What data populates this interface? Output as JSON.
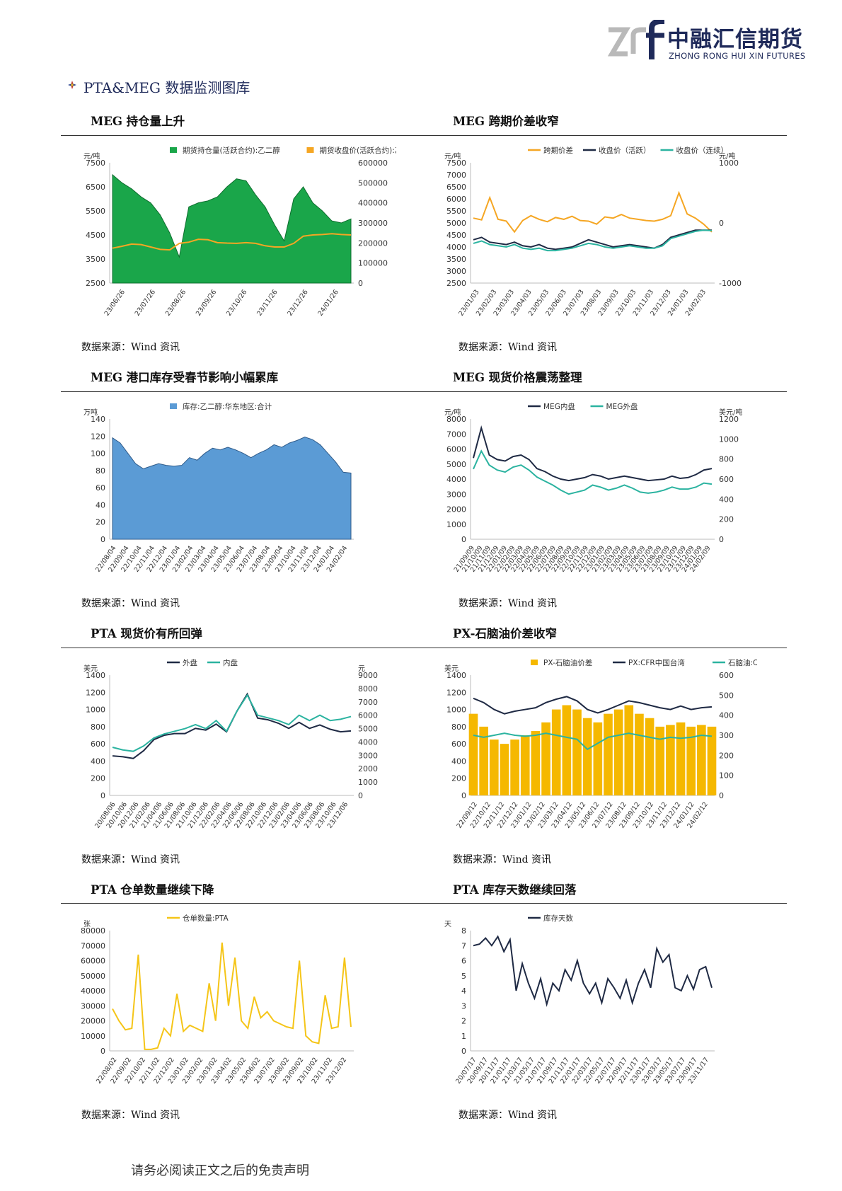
{
  "header": {
    "logo_cn": "中融汇信期货",
    "logo_en": "ZHONG RONG HUI XIN FUTURES",
    "section_title": "PTA&MEG 数据监测图库",
    "colors": {
      "brand": "#1f2a5a",
      "logo_grey": "#b9b9b9",
      "bullet_red": "#c0312b",
      "bullet_blue": "#1f3a8a",
      "bullet_yellow": "#e5b12a"
    }
  },
  "footer": {
    "disclaimer": "请务必阅读正文之后的免责声明"
  },
  "charts": [
    {
      "title": "MEG 持仓量上升",
      "source": "数据来源：Wind 资讯",
      "chart_data": {
        "type": "area",
        "legend": [
          "期货持仓量(活跃合约):乙二醇",
          "期货收盘价(活跃合约):乙二醇"
        ],
        "y_left_unit": "元/吨",
        "y_left_ticks": [
          "2500",
          "3500",
          "4500",
          "5500",
          "6500",
          "7500"
        ],
        "y_left_range": [
          2500,
          7500
        ],
        "y_right_ticks": [
          "0",
          "100000",
          "200000",
          "300000",
          "400000",
          "500000",
          "600000"
        ],
        "y_right_range": [
          0,
          600000
        ],
        "x_ticks": [
          "23/06/26",
          "23/07/26",
          "23/08/26",
          "23/09/26",
          "23/10/26",
          "23/11/26",
          "23/12/26",
          "24/01/26"
        ],
        "series": [
          {
            "name": "期货持仓量(活跃合约):乙二醇",
            "axis": "right",
            "color": "#1aa64a",
            "values": [
              540000,
              500000,
              470000,
              430000,
              400000,
              340000,
              250000,
              130000,
              380000,
              400000,
              410000,
              430000,
              480000,
              520000,
              510000,
              440000,
              380000,
              290000,
              210000,
              420000,
              480000,
              400000,
              360000,
              310000,
              300000,
              320000
            ]
          },
          {
            "name": "期货收盘价(活跃合约):乙二醇",
            "axis": "left",
            "color": "#f5a623",
            "values": [
              3950,
              4030,
              4120,
              4100,
              4000,
              3900,
              3880,
              4150,
              4200,
              4320,
              4300,
              4180,
              4160,
              4150,
              4180,
              4150,
              4050,
              4000,
              4000,
              4150,
              4450,
              4500,
              4520,
              4550,
              4520,
              4500
            ]
          }
        ]
      }
    },
    {
      "title": "MEG 跨期价差收窄",
      "source": "数据来源：Wind 资讯",
      "chart_data": {
        "type": "line",
        "legend": [
          "跨期价差",
          "收盘价（活跃）",
          "收盘价（连续）"
        ],
        "y_left_unit": "元/吨",
        "y_left_ticks": [
          "2500",
          "3000",
          "3500",
          "4000",
          "4500",
          "5000",
          "5500",
          "6000",
          "6500",
          "7000",
          "7500"
        ],
        "y_left_range": [
          2500,
          7500
        ],
        "y_right_unit": "元/吨",
        "y_right_ticks": [
          "-1000",
          "0",
          "1000"
        ],
        "y_right_range": [
          -1000,
          1000
        ],
        "x_ticks": [
          "23/01/03",
          "23/02/03",
          "23/03/03",
          "23/04/03",
          "23/05/03",
          "23/06/03",
          "23/07/03",
          "23/08/03",
          "23/09/03",
          "23/10/03",
          "23/11/03",
          "23/12/03",
          "24/01/03",
          "24/02/03"
        ],
        "series": [
          {
            "name": "跨期价差",
            "axis": "right",
            "color": "#f5a623",
            "values": [
              80,
              50,
              420,
              60,
              30,
              -150,
              40,
              120,
              60,
              20,
              90,
              60,
              110,
              40,
              30,
              -20,
              100,
              80,
              140,
              80,
              60,
              40,
              30,
              60,
              120,
              500,
              150,
              80,
              -20,
              -150
            ]
          },
          {
            "name": "收盘价（活跃）",
            "axis": "left",
            "color": "#1f2a44",
            "values": [
              4300,
              4400,
              4200,
              4150,
              4100,
              4200,
              4050,
              4000,
              4100,
              3950,
              3900,
              3950,
              4000,
              4150,
              4300,
              4200,
              4100,
              4000,
              4050,
              4100,
              4050,
              4000,
              3950,
              4100,
              4400,
              4500,
              4600,
              4700,
              4700,
              4700
            ]
          },
          {
            "name": "收盘价（连续）",
            "axis": "left",
            "color": "#2bb3a0",
            "values": [
              4150,
              4250,
              4100,
              4050,
              4000,
              4100,
              3950,
              3900,
              3950,
              3850,
              3850,
              3900,
              3950,
              4050,
              4150,
              4100,
              4000,
              3950,
              4000,
              4050,
              4000,
              3950,
              3950,
              4050,
              4350,
              4450,
              4550,
              4650,
              4700,
              4680
            ]
          }
        ]
      }
    },
    {
      "title": "MEG 港口库存受春节影响小幅累库",
      "source": "数据来源：Wind 资讯",
      "chart_data": {
        "type": "area",
        "legend": [
          "库存:乙二醇:华东地区:合计"
        ],
        "y_left_unit": "万吨",
        "y_left_ticks": [
          "0",
          "20",
          "40",
          "60",
          "80",
          "100",
          "120",
          "140"
        ],
        "y_left_range": [
          0,
          140
        ],
        "x_ticks": [
          "22/08/04",
          "22/09/04",
          "22/10/04",
          "22/11/04",
          "22/12/04",
          "23/01/04",
          "23/02/04",
          "23/03/04",
          "23/04/04",
          "23/05/04",
          "23/06/04",
          "23/07/04",
          "23/08/04",
          "23/09/04",
          "23/10/04",
          "23/11/04",
          "23/12/04",
          "24/01/04",
          "24/02/04"
        ],
        "series": [
          {
            "name": "库存:乙二醇:华东地区:合计",
            "color": "#5b9bd5",
            "values": [
              118,
              112,
              100,
              88,
              82,
              85,
              88,
              86,
              85,
              86,
              95,
              92,
              100,
              106,
              104,
              107,
              104,
              100,
              95,
              100,
              104,
              110,
              107,
              112,
              115,
              119,
              116,
              110,
              100,
              90,
              78,
              77
            ]
          }
        ]
      }
    },
    {
      "title": "MEG 现货价格震荡整理",
      "source": "数据来源：Wind 资讯",
      "chart_data": {
        "type": "line",
        "legend": [
          "MEG内盘",
          "MEG外盘"
        ],
        "y_left_unit": "元/吨",
        "y_left_ticks": [
          "0",
          "1000",
          "2000",
          "3000",
          "4000",
          "5000",
          "6000",
          "7000",
          "8000"
        ],
        "y_left_range": [
          0,
          8000
        ],
        "y_right_unit": "美元/吨",
        "y_right_ticks": [
          "0",
          "200",
          "400",
          "600",
          "800",
          "1000",
          "1200"
        ],
        "y_right_range": [
          0,
          1200
        ],
        "x_ticks": [
          "21/09/09",
          "21/10/09",
          "21/11/09",
          "21/12/09",
          "22/01/09",
          "22/02/09",
          "22/03/09",
          "22/04/09",
          "22/05/09",
          "22/06/09",
          "22/07/09",
          "22/08/09",
          "22/09/09",
          "22/10/09",
          "22/11/09",
          "22/12/09",
          "23/01/09",
          "23/02/09",
          "23/03/09",
          "23/04/09",
          "23/05/09",
          "23/06/09",
          "23/07/09",
          "23/08/09",
          "23/09/09",
          "23/10/09",
          "23/11/09",
          "23/12/09",
          "24/01/09",
          "24/02/09"
        ],
        "series": [
          {
            "name": "MEG内盘",
            "axis": "left",
            "color": "#1f2a44",
            "values": [
              5400,
              7400,
              5600,
              5300,
              5200,
              5500,
              5600,
              5300,
              4700,
              4500,
              4200,
              4000,
              3900,
              4000,
              4100,
              4300,
              4200,
              4000,
              4100,
              4200,
              4100,
              4000,
              3900,
              3950,
              4000,
              4200,
              4050,
              4100,
              4300,
              4600,
              4700
            ]
          },
          {
            "name": "MEG外盘",
            "axis": "right",
            "color": "#2bb3a0",
            "values": [
              700,
              880,
              740,
              690,
              670,
              720,
              740,
              690,
              620,
              580,
              540,
              490,
              450,
              470,
              490,
              540,
              520,
              490,
              510,
              540,
              510,
              470,
              460,
              470,
              490,
              520,
              500,
              500,
              520,
              560,
              550
            ]
          }
        ]
      }
    },
    {
      "title": "PTA 现货价有所回弹",
      "source": "数据来源：Wind 资讯",
      "chart_data": {
        "type": "line",
        "legend": [
          "外盘",
          "内盘"
        ],
        "y_left_unit": "美元",
        "y_left_ticks": [
          "0",
          "200",
          "400",
          "600",
          "800",
          "1000",
          "1200",
          "1400"
        ],
        "y_left_range": [
          0,
          1400
        ],
        "y_right_unit": "元",
        "y_right_ticks": [
          "0",
          "1000",
          "2000",
          "3000",
          "4000",
          "5000",
          "6000",
          "7000",
          "8000",
          "9000"
        ],
        "y_right_range": [
          0,
          9000
        ],
        "x_ticks": [
          "20/08/06",
          "20/10/06",
          "20/12/06",
          "21/02/06",
          "21/04/06",
          "21/06/06",
          "21/08/06",
          "21/10/06",
          "21/12/06",
          "22/02/06",
          "22/04/06",
          "22/06/06",
          "22/08/06",
          "22/10/06",
          "22/12/06",
          "23/02/06",
          "23/04/06",
          "23/06/06",
          "23/08/06",
          "23/10/06",
          "23/12/06"
        ],
        "series": [
          {
            "name": "外盘",
            "axis": "left",
            "color": "#1f2a44",
            "values": [
              460,
              450,
              430,
              520,
              650,
              700,
              720,
              720,
              780,
              760,
              830,
              740,
              980,
              1180,
              900,
              880,
              840,
              780,
              850,
              780,
              820,
              770,
              740,
              750
            ]
          },
          {
            "name": "内盘",
            "axis": "right",
            "color": "#2bb3a0",
            "values": [
              3600,
              3400,
              3300,
              3700,
              4300,
              4600,
              4800,
              5000,
              5300,
              5000,
              5600,
              4800,
              6300,
              7500,
              6000,
              5800,
              5600,
              5300,
              6000,
              5600,
              6000,
              5600,
              5700,
              5900
            ]
          }
        ]
      }
    },
    {
      "title": "PX-石脑油价差收窄",
      "source": "数据来源：Wind 资讯",
      "chart_data": {
        "type": "bar",
        "legend": [
          "PX-石脑油价差",
          "PX:CFR中国台湾",
          "石脑油:CFR日本"
        ],
        "y_left_unit": "美元",
        "y_left_ticks": [
          "0",
          "200",
          "400",
          "600",
          "800",
          "1000",
          "1200",
          "1400"
        ],
        "y_left_range": [
          0,
          1400
        ],
        "y_right_ticks": [
          "0",
          "100",
          "200",
          "300",
          "400",
          "500",
          "600"
        ],
        "y_right_range": [
          0,
          600
        ],
        "x_ticks": [
          "22/09/12",
          "22/10/12",
          "22/11/12",
          "22/12/12",
          "23/01/12",
          "23/02/12",
          "23/03/12",
          "23/04/12",
          "23/05/12",
          "23/06/12",
          "23/07/12",
          "23/08/12",
          "23/09/12",
          "23/10/12",
          "23/11/12",
          "23/12/12",
          "24/01/12",
          "24/02/12"
        ],
        "series": [
          {
            "name": "PX-石脑油价差",
            "axis": "left",
            "color": "#f5b800",
            "values": [
              950,
              800,
              650,
              600,
              650,
              700,
              750,
              850,
              1000,
              1050,
              1000,
              900,
              850,
              950,
              1000,
              1050,
              950,
              900,
              800,
              820,
              850,
              800,
              820,
              800
            ]
          },
          {
            "name": "PX:CFR中国台湾",
            "axis": "left",
            "color": "#1f2a44",
            "values": [
              1130,
              1080,
              1000,
              950,
              980,
              1000,
              1020,
              1080,
              1120,
              1150,
              1100,
              1000,
              960,
              1000,
              1050,
              1100,
              1080,
              1050,
              1020,
              1000,
              1040,
              1000,
              1020,
              1030
            ]
          },
          {
            "name": "石脑油:CFR日本",
            "axis": "right",
            "color": "#2bb3a0",
            "values": [
              300,
              290,
              300,
              310,
              300,
              295,
              300,
              310,
              300,
              290,
              280,
              230,
              260,
              290,
              300,
              310,
              300,
              290,
              280,
              290,
              285,
              290,
              300,
              295
            ]
          }
        ]
      }
    },
    {
      "title": "PTA 仓单数量继续下降",
      "source": "数据来源：Wind 资讯",
      "chart_data": {
        "type": "line",
        "legend": [
          "仓单数量:PTA"
        ],
        "y_left_unit": "张",
        "y_left_ticks": [
          "0",
          "10000",
          "20000",
          "30000",
          "40000",
          "50000",
          "60000",
          "70000",
          "80000"
        ],
        "y_left_range": [
          0,
          80000
        ],
        "x_ticks": [
          "22/08/02",
          "22/09/02",
          "22/10/02",
          "22/11/02",
          "22/12/02",
          "23/01/02",
          "23/02/02",
          "23/03/02",
          "23/04/02",
          "23/05/02",
          "23/06/02",
          "23/07/02",
          "23/08/02",
          "23/09/02",
          "23/10/02",
          "23/11/02",
          "23/12/02"
        ],
        "series": [
          {
            "name": "仓单数量:PTA",
            "color": "#f5c518",
            "values": [
              28000,
              20000,
              14000,
              15000,
              64000,
              1000,
              1000,
              2000,
              15000,
              10000,
              38000,
              13000,
              17000,
              15000,
              13000,
              45000,
              20000,
              72000,
              30000,
              62000,
              20000,
              15000,
              36000,
              22000,
              26000,
              20000,
              18000,
              16000,
              15000,
              60000,
              10000,
              6000,
              5000,
              37000,
              15000,
              16000,
              62000,
              16000
            ]
          }
        ]
      }
    },
    {
      "title": "PTA 库存天数继续回落",
      "source": "数据来源：Wind 资讯",
      "chart_data": {
        "type": "line",
        "legend": [
          "库存天数"
        ],
        "y_left_unit": "天",
        "y_left_ticks": [
          "0",
          "1",
          "2",
          "3",
          "4",
          "5",
          "6",
          "7",
          "8"
        ],
        "y_left_range": [
          0,
          8
        ],
        "x_ticks": [
          "20/07/17",
          "20/09/17",
          "20/11/17",
          "21/01/17",
          "21/03/17",
          "21/05/17",
          "21/07/17",
          "21/09/17",
          "21/11/17",
          "22/01/17",
          "22/03/17",
          "22/05/17",
          "22/07/17",
          "22/09/17",
          "22/11/17",
          "23/01/17",
          "23/03/17",
          "23/05/17",
          "23/07/17",
          "23/09/17",
          "23/11/17"
        ],
        "series": [
          {
            "name": "库存天数",
            "color": "#1f2a44",
            "values": [
              7,
              7.1,
              7.5,
              7,
              7.6,
              6.6,
              7.4,
              4,
              5.8,
              4.5,
              3.5,
              4.8,
              3.1,
              4.5,
              4,
              5.4,
              4.7,
              6,
              4.5,
              3.8,
              4.5,
              3.2,
              4.8,
              4.2,
              3.5,
              4.7,
              3.2,
              4.5,
              5.4,
              4.2,
              6.8,
              5.9,
              6.4,
              4.2,
              4.0,
              5.0,
              4.1,
              5.4,
              5.6,
              4.2
            ]
          }
        ]
      }
    }
  ]
}
